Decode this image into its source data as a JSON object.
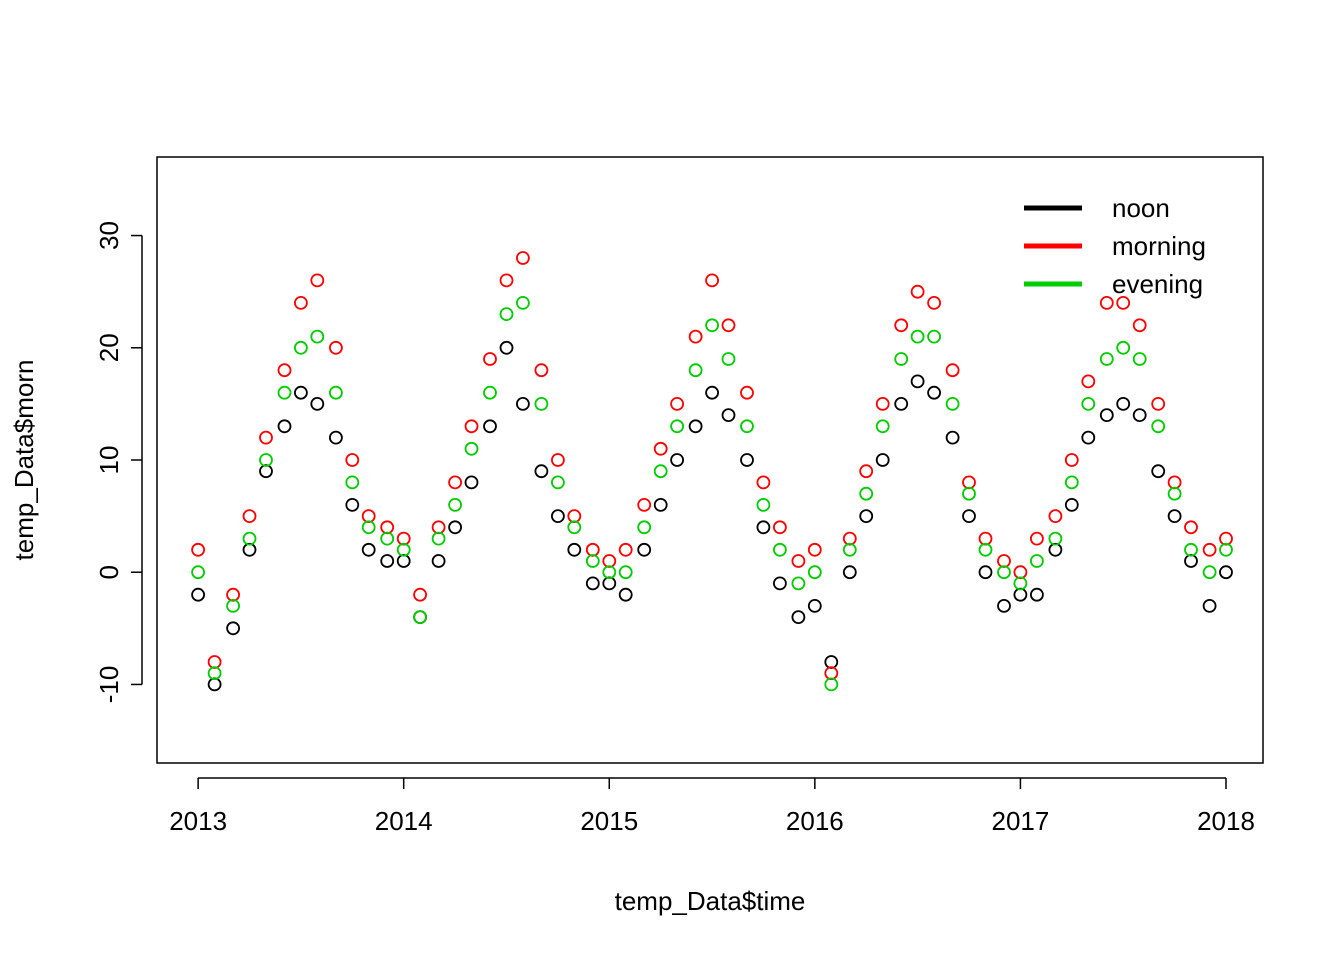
{
  "chart_data": {
    "type": "scatter",
    "title": "",
    "xlabel": "temp_Data$time",
    "ylabel": "temp_Data$morn",
    "xlim": [
      2012.8,
      2018.18
    ],
    "ylim": [
      -17,
      37
    ],
    "x_ticks": [
      {
        "value": 2013,
        "label": "2013"
      },
      {
        "value": 2014,
        "label": "2014"
      },
      {
        "value": 2015,
        "label": "2015"
      },
      {
        "value": 2016,
        "label": "2016"
      },
      {
        "value": 2017,
        "label": "2017"
      },
      {
        "value": 2018,
        "label": "2018"
      }
    ],
    "y_ticks": [
      {
        "value": -10,
        "label": "-10"
      },
      {
        "value": 0,
        "label": "0"
      },
      {
        "value": 10,
        "label": "10"
      },
      {
        "value": 20,
        "label": "20"
      },
      {
        "value": 30,
        "label": "30"
      }
    ],
    "grid": false,
    "legend_position": "top-right",
    "series": [
      {
        "name": "noon",
        "color": "#000000",
        "x": [
          2013.0,
          2013.08,
          2013.17,
          2013.25,
          2013.33,
          2013.42,
          2013.5,
          2013.58,
          2013.67,
          2013.75,
          2013.83,
          2013.92,
          2014.0,
          2014.08,
          2014.17,
          2014.25,
          2014.33,
          2014.42,
          2014.5,
          2014.58,
          2014.67,
          2014.75,
          2014.83,
          2014.92,
          2015.0,
          2015.08,
          2015.17,
          2015.25,
          2015.33,
          2015.42,
          2015.5,
          2015.58,
          2015.67,
          2015.75,
          2015.83,
          2015.92,
          2016.0,
          2016.08,
          2016.17,
          2016.25,
          2016.33,
          2016.42,
          2016.5,
          2016.58,
          2016.67,
          2016.75,
          2016.83,
          2016.92,
          2017.0,
          2017.08,
          2017.17,
          2017.25,
          2017.33,
          2017.42,
          2017.5,
          2017.58,
          2017.67,
          2017.75,
          2017.83,
          2017.92,
          2018.0
        ],
        "y": [
          -2,
          -10,
          -5,
          2,
          9,
          13,
          16,
          15,
          12,
          6,
          2,
          1,
          1,
          -4,
          1,
          4,
          8,
          13,
          20,
          15,
          9,
          5,
          2,
          -1,
          -1,
          -2,
          2,
          6,
          10,
          13,
          16,
          14,
          10,
          4,
          -1,
          -4,
          -3,
          -8,
          0,
          5,
          10,
          15,
          17,
          16,
          12,
          5,
          0,
          -3,
          -2,
          -2,
          2,
          6,
          12,
          14,
          15,
          14,
          9,
          5,
          1,
          -3,
          0
        ]
      },
      {
        "name": "morning",
        "color": "#ff0000",
        "x": [
          2013.0,
          2013.08,
          2013.17,
          2013.25,
          2013.33,
          2013.42,
          2013.5,
          2013.58,
          2013.67,
          2013.75,
          2013.83,
          2013.92,
          2014.0,
          2014.08,
          2014.17,
          2014.25,
          2014.33,
          2014.42,
          2014.5,
          2014.58,
          2014.67,
          2014.75,
          2014.83,
          2014.92,
          2015.0,
          2015.08,
          2015.17,
          2015.25,
          2015.33,
          2015.42,
          2015.5,
          2015.58,
          2015.67,
          2015.75,
          2015.83,
          2015.92,
          2016.0,
          2016.08,
          2016.17,
          2016.25,
          2016.33,
          2016.42,
          2016.5,
          2016.58,
          2016.67,
          2016.75,
          2016.83,
          2016.92,
          2017.0,
          2017.08,
          2017.17,
          2017.25,
          2017.33,
          2017.42,
          2017.5,
          2017.58,
          2017.67,
          2017.75,
          2017.83,
          2017.92,
          2018.0
        ],
        "y": [
          2,
          -8,
          -2,
          5,
          12,
          18,
          24,
          26,
          20,
          10,
          5,
          4,
          3,
          -2,
          4,
          8,
          13,
          19,
          26,
          28,
          18,
          10,
          5,
          2,
          1,
          2,
          6,
          11,
          15,
          21,
          26,
          22,
          16,
          8,
          4,
          1,
          2,
          -9,
          3,
          9,
          15,
          22,
          25,
          24,
          18,
          8,
          3,
          1,
          0,
          3,
          5,
          10,
          17,
          24,
          24,
          22,
          15,
          8,
          4,
          2,
          3
        ]
      },
      {
        "name": "evening",
        "color": "#00cd00",
        "x": [
          2013.0,
          2013.08,
          2013.17,
          2013.25,
          2013.33,
          2013.42,
          2013.5,
          2013.58,
          2013.67,
          2013.75,
          2013.83,
          2013.92,
          2014.0,
          2014.08,
          2014.17,
          2014.25,
          2014.33,
          2014.42,
          2014.5,
          2014.58,
          2014.67,
          2014.75,
          2014.83,
          2014.92,
          2015.0,
          2015.08,
          2015.17,
          2015.25,
          2015.33,
          2015.42,
          2015.5,
          2015.58,
          2015.67,
          2015.75,
          2015.83,
          2015.92,
          2016.0,
          2016.08,
          2016.17,
          2016.25,
          2016.33,
          2016.42,
          2016.5,
          2016.58,
          2016.67,
          2016.75,
          2016.83,
          2016.92,
          2017.0,
          2017.08,
          2017.17,
          2017.25,
          2017.33,
          2017.42,
          2017.5,
          2017.58,
          2017.67,
          2017.75,
          2017.83,
          2017.92,
          2018.0
        ],
        "y": [
          0,
          -9,
          -3,
          3,
          10,
          16,
          20,
          21,
          16,
          8,
          4,
          3,
          2,
          -4,
          3,
          6,
          11,
          16,
          23,
          24,
          15,
          8,
          4,
          1,
          0,
          0,
          4,
          9,
          13,
          18,
          22,
          19,
          13,
          6,
          2,
          -1,
          0,
          -10,
          2,
          7,
          13,
          19,
          21,
          21,
          15,
          7,
          2,
          0,
          -1,
          1,
          3,
          8,
          15,
          19,
          20,
          19,
          13,
          7,
          2,
          0,
          2
        ]
      }
    ]
  }
}
